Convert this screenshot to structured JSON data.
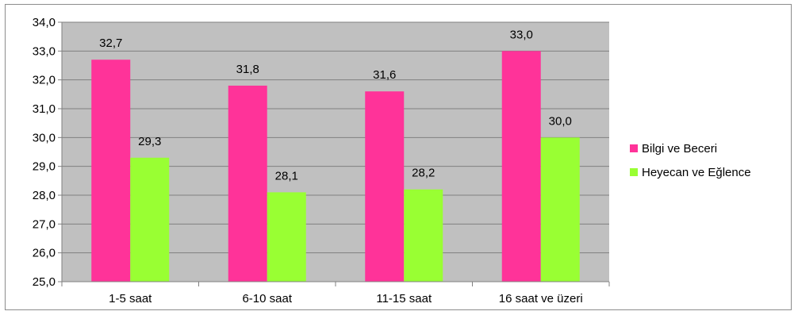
{
  "chart_data": {
    "type": "bar",
    "categories": [
      "1-5 saat",
      "6-10 saat",
      "11-15 saat",
      "16 saat ve üzeri"
    ],
    "series": [
      {
        "name": "Bilgi ve Beceri",
        "values": [
          32.7,
          31.8,
          31.6,
          33.0
        ],
        "labels": [
          "32,7",
          "31,8",
          "31,6",
          "33,0"
        ],
        "color": "#ff3399"
      },
      {
        "name": "Heyecan ve Eğlence",
        "values": [
          29.3,
          28.1,
          28.2,
          30.0
        ],
        "labels": [
          "29,3",
          "28,1",
          "28,2",
          "30,0"
        ],
        "color": "#99ff33"
      }
    ],
    "ylim": [
      25,
      34
    ],
    "yticks": [
      25,
      26,
      27,
      28,
      29,
      30,
      31,
      32,
      33,
      34
    ],
    "ytick_labels": [
      "25,0",
      "26,0",
      "27,0",
      "28,0",
      "29,0",
      "30,0",
      "31,0",
      "32,0",
      "33,0",
      "34,0"
    ],
    "grid": true,
    "plot_background": "#c0c0c0",
    "legend_position": "right"
  }
}
